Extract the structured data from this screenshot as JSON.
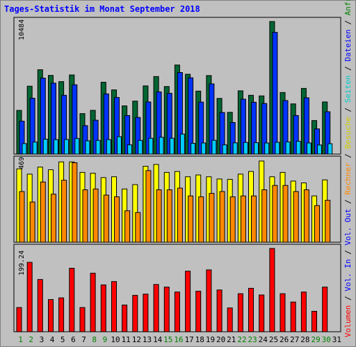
{
  "title": "Tages-Statistik im Monat September 2018",
  "colors": {
    "background": "#c0c0c0",
    "anfragen": "#006633",
    "dateien": "#0033ff",
    "seiten": "#00ccff",
    "besuche": "#ffff00",
    "rechner": "#ff8800",
    "volumen": "#ff0000",
    "weekend_day": "#008000",
    "weekday": "#000000"
  },
  "legend": {
    "panel1": [
      {
        "text": "Anfragen",
        "color": "#008000"
      },
      {
        "text": "Dateien",
        "color": "#0000ff"
      },
      {
        "text": "Seiten",
        "color": "#00cccc"
      }
    ],
    "panel2": [
      {
        "text": "Besuche",
        "color": "#cccc00"
      },
      {
        "text": "Rechner",
        "color": "#ff8800"
      }
    ],
    "panel3": [
      {
        "text": "Vol. Out",
        "color": "#0000ff"
      },
      {
        "text": "Vol. In",
        "color": "#0000ff"
      },
      {
        "text": "Volumen",
        "color": "#ff0000"
      }
    ],
    "separator": " / "
  },
  "chart_data": [
    {
      "type": "bar",
      "panel": "Anfragen / Dateien / Seiten",
      "ylim": [
        0,
        10484
      ],
      "ymax_label": "10484",
      "categories": [
        "1",
        "2",
        "3",
        "4",
        "5",
        "6",
        "7",
        "8",
        "9",
        "10",
        "11",
        "12",
        "13",
        "14",
        "15",
        "16",
        "17",
        "18",
        "19",
        "20",
        "21",
        "22",
        "23",
        "24",
        "25",
        "26",
        "27",
        "28",
        "29",
        "30"
      ],
      "series": [
        {
          "name": "Anfragen",
          "values": [
            3450,
            5370,
            6670,
            6220,
            5730,
            6260,
            3200,
            3460,
            5680,
            5080,
            3810,
            4190,
            5390,
            6130,
            5340,
            7040,
            6310,
            4980,
            6210,
            4400,
            3300,
            5000,
            4650,
            4600,
            10484,
            4870,
            3970,
            5190,
            2650,
            4120
          ]
        },
        {
          "name": "Dateien",
          "values": [
            2600,
            4420,
            6010,
            5610,
            4650,
            5480,
            2250,
            2680,
            4760,
            4480,
            3050,
            2900,
            4120,
            4920,
            4810,
            6450,
            6030,
            4110,
            5550,
            3290,
            2500,
            4340,
            4100,
            4000,
            9630,
            4230,
            3050,
            4450,
            1990,
            3350
          ]
        },
        {
          "name": "Seiten",
          "values": [
            830,
            950,
            1180,
            1140,
            1150,
            1230,
            1050,
            1080,
            1140,
            1380,
            730,
            1080,
            1250,
            1330,
            1250,
            1580,
            850,
            880,
            1090,
            730,
            890,
            920,
            900,
            880,
            930,
            960,
            1010,
            880,
            720,
            820
          ]
        }
      ]
    },
    {
      "type": "bar",
      "panel": "Besuche / Rechner",
      "ylim": [
        0,
        469
      ],
      "ymax_label": "469",
      "categories": [
        "1",
        "2",
        "3",
        "4",
        "5",
        "6",
        "7",
        "8",
        "9",
        "10",
        "11",
        "12",
        "13",
        "14",
        "15",
        "16",
        "17",
        "18",
        "19",
        "20",
        "21",
        "22",
        "23",
        "24",
        "25",
        "26",
        "27",
        "28",
        "29",
        "30"
      ],
      "series": [
        {
          "name": "Besuche",
          "values": [
            420,
            390,
            430,
            415,
            460,
            460,
            400,
            395,
            370,
            375,
            305,
            330,
            435,
            445,
            400,
            405,
            375,
            385,
            375,
            362,
            360,
            390,
            405,
            465,
            375,
            400,
            350,
            340,
            265,
            357
          ]
        },
        {
          "name": "Rechner",
          "values": [
            290,
            230,
            345,
            275,
            355,
            455,
            300,
            305,
            270,
            260,
            180,
            170,
            410,
            300,
            300,
            310,
            265,
            260,
            280,
            290,
            260,
            265,
            265,
            300,
            325,
            325,
            290,
            300,
            210,
            240
          ]
        }
      ]
    },
    {
      "type": "bar",
      "panel": "Volumen (Vol. In / Vol. Out)",
      "ylim": [
        0,
        199.24
      ],
      "ymax_label": "199.24",
      "categories": [
        "1",
        "2",
        "3",
        "4",
        "5",
        "6",
        "7",
        "8",
        "9",
        "10",
        "11",
        "12",
        "13",
        "14",
        "15",
        "16",
        "17",
        "18",
        "19",
        "20",
        "21",
        "22",
        "23",
        "24",
        "25",
        "26",
        "27",
        "28",
        "29",
        "30"
      ],
      "series": [
        {
          "name": "Volumen",
          "values": [
            58,
            166,
            125,
            77,
            81,
            152,
            58,
            140,
            112,
            120,
            64,
            87,
            90,
            113,
            107,
            95,
            145,
            97,
            148,
            100,
            57,
            91,
            104,
            88,
            199.24,
            91,
            71,
            95,
            49,
            107
          ]
        }
      ]
    }
  ],
  "x_axis_labels": [
    "1",
    "2",
    "3",
    "4",
    "5",
    "6",
    "7",
    "8",
    "9",
    "10",
    "11",
    "12",
    "13",
    "14",
    "15",
    "16",
    "17",
    "18",
    "19",
    "20",
    "21",
    "22",
    "23",
    "24",
    "25",
    "26",
    "27",
    "28",
    "29",
    "30",
    "31"
  ],
  "weekend_days": [
    "1",
    "2",
    "8",
    "9",
    "15",
    "16",
    "22",
    "23",
    "29",
    "30"
  ]
}
